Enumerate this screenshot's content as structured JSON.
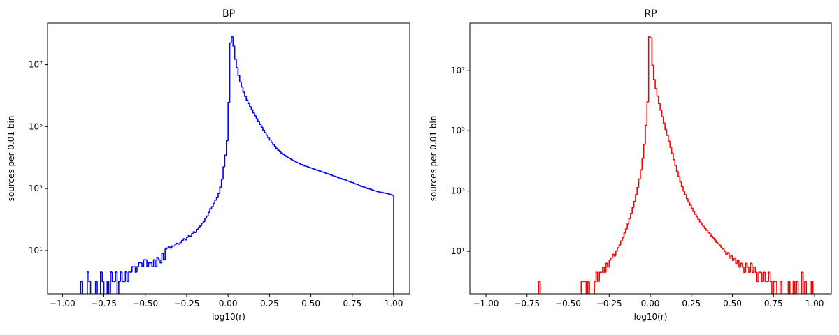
{
  "chart_data": [
    {
      "type": "histogram",
      "title": "BP",
      "xlabel": "log10(r)",
      "ylabel": "sources per 0.01 bin",
      "color": "#0000ff",
      "log_y": true,
      "xlim": [
        -1.09,
        1.097
      ],
      "ylim": [
        0.4,
        220000000
      ],
      "xticks": [
        {
          "value": -1,
          "label": "−1.00"
        },
        {
          "value": -0.75,
          "label": "−0.75"
        },
        {
          "value": -0.5,
          "label": "−0.50"
        },
        {
          "value": -0.25,
          "label": "−0.25"
        },
        {
          "value": 0,
          "label": "0.00"
        },
        0.25,
        {
          "value": 0.5,
          "label": "0.50"
        },
        0.75,
        {
          "value": 1,
          "label": "1.00"
        }
      ],
      "yticks": [
        {
          "value": 10,
          "label": "10¹"
        },
        {
          "value": 1000,
          "label": "10³"
        },
        {
          "value": 100000,
          "label": "10⁵"
        },
        {
          "value": 10000000,
          "label": "10⁷"
        }
      ],
      "bins": [
        -0.89,
        -0.88,
        -0.87,
        -0.86,
        -0.85,
        -0.84,
        -0.83,
        -0.82,
        -0.81,
        -0.8,
        -0.79,
        -0.78,
        -0.77,
        -0.76,
        -0.75,
        -0.74,
        -0.73,
        -0.72,
        -0.71,
        -0.7,
        -0.69,
        -0.68,
        -0.67,
        -0.66,
        -0.65,
        -0.64,
        -0.63,
        -0.62,
        -0.61,
        -0.6,
        -0.59,
        -0.58,
        -0.57,
        -0.56,
        -0.55,
        -0.54,
        -0.53,
        -0.52,
        -0.51,
        -0.5,
        -0.49,
        -0.48,
        -0.47,
        -0.46,
        -0.45,
        -0.44,
        -0.43,
        -0.42,
        -0.41,
        -0.4,
        -0.39,
        -0.38,
        -0.37,
        -0.36,
        -0.35,
        -0.34,
        -0.33,
        -0.32,
        -0.31,
        -0.3,
        -0.29,
        -0.28,
        -0.27,
        -0.26,
        -0.25,
        -0.24,
        -0.23,
        -0.22,
        -0.21,
        -0.2,
        -0.19,
        -0.18,
        -0.17,
        -0.16,
        -0.15,
        -0.14,
        -0.13,
        -0.12,
        -0.11,
        -0.1,
        -0.09,
        -0.08,
        -0.07,
        -0.06,
        -0.05,
        -0.04,
        -0.03,
        -0.02,
        -0.01,
        0,
        0.01,
        0.02,
        0.03,
        0.04,
        0.05,
        0.06,
        0.07,
        0.08,
        0.09,
        0.1,
        0.11,
        0.12,
        0.13,
        0.14,
        0.15,
        0.16,
        0.17,
        0.18,
        0.19,
        0.2,
        0.21,
        0.22,
        0.23,
        0.24,
        0.25,
        0.26,
        0.27,
        0.28,
        0.29,
        0.3,
        0.31,
        0.32,
        0.33,
        0.34,
        0.35,
        0.36,
        0.37,
        0.38,
        0.39,
        0.4,
        0.41,
        0.42,
        0.43,
        0.44,
        0.45,
        0.46,
        0.47,
        0.48,
        0.49,
        0.5,
        0.51,
        0.52,
        0.53,
        0.54,
        0.55,
        0.56,
        0.57,
        0.58,
        0.59,
        0.6,
        0.61,
        0.62,
        0.63,
        0.64,
        0.65,
        0.66,
        0.67,
        0.68,
        0.69,
        0.7,
        0.71,
        0.72,
        0.73,
        0.74,
        0.75,
        0.76,
        0.77,
        0.78,
        0.79,
        0.8,
        0.81,
        0.82,
        0.83,
        0.84,
        0.85,
        0.86,
        0.87,
        0.88,
        0.89,
        0.9,
        0.91,
        0.92,
        0.93,
        0.94,
        0.95,
        0.96,
        0.97,
        0.98,
        0.99,
        1
      ],
      "values": [
        1,
        0,
        0,
        0,
        2,
        1,
        0,
        0,
        0,
        1,
        0,
        0,
        2,
        1,
        0,
        0,
        1,
        0,
        2,
        1,
        1,
        2,
        0,
        1,
        2,
        1,
        1,
        2,
        1,
        2,
        2,
        3,
        3,
        2,
        3,
        4,
        4,
        3,
        5,
        5,
        3,
        4,
        4,
        3,
        5,
        3,
        6,
        5,
        4,
        8,
        5,
        11,
        12,
        13,
        12,
        14,
        14,
        16,
        17,
        16,
        18,
        21,
        24,
        22,
        27,
        30,
        29,
        35,
        40,
        38,
        48,
        55,
        62,
        75,
        85,
        110,
        130,
        170,
        220,
        260,
        330,
        420,
        520,
        700,
        1100,
        2000,
        5000,
        12000,
        35000,
        600000,
        50000000,
        80000000,
        40000000,
        15000000,
        8000000,
        4500000,
        2800000,
        1900000,
        1300000,
        950000,
        720000,
        560000,
        440000,
        350000,
        280000,
        225000,
        180000,
        145000,
        118000,
        96000,
        78000,
        64000,
        53000,
        44000,
        37000,
        31000,
        26500,
        23000,
        20000,
        17500,
        15500,
        14000,
        12800,
        11700,
        10800,
        10000,
        9300,
        8700,
        8100,
        7600,
        7100,
        6700,
        6300,
        6000,
        5700,
        5400,
        5200,
        5000,
        4800,
        4600,
        4400,
        4200,
        4000,
        3850,
        3700,
        3550,
        3400,
        3250,
        3100,
        3000,
        2850,
        2750,
        2600,
        2500,
        2400,
        2300,
        2200,
        2100,
        2000,
        1950,
        1850,
        1750,
        1700,
        1600,
        1550,
        1450,
        1400,
        1350,
        1250,
        1200,
        1150,
        1100,
        1050,
        1000,
        980,
        940,
        900,
        860,
        830,
        800,
        780,
        760,
        740,
        720,
        700,
        690,
        660,
        640,
        600
      ]
    },
    {
      "type": "histogram",
      "title": "RP",
      "xlabel": "log10(r)",
      "ylabel": "sources per 0.01 bin",
      "color": "#ff0000",
      "log_y": true,
      "xlim": [
        -1.098,
        1.102
      ],
      "ylim": [
        0.39,
        370000000
      ],
      "xticks": [
        {
          "value": -1,
          "label": "−1.00"
        },
        {
          "value": -0.75,
          "label": "−0.75"
        },
        {
          "value": -0.5,
          "label": "−0.50"
        },
        {
          "value": -0.25,
          "label": "−0.25"
        },
        {
          "value": 0,
          "label": "0.00"
        },
        0.25,
        {
          "value": 0.5,
          "label": "0.50"
        },
        0.75,
        {
          "value": 1,
          "label": "1.00"
        }
      ],
      "yticks": [
        {
          "value": 10,
          "label": "10¹"
        },
        {
          "value": 1000,
          "label": "10³"
        },
        {
          "value": 100000,
          "label": "10⁵"
        },
        {
          "value": 10000000,
          "label": "10⁷"
        }
      ],
      "bins": [
        -0.68,
        -0.67,
        -0.66,
        -0.65,
        -0.64,
        -0.63,
        -0.62,
        -0.61,
        -0.6,
        -0.59,
        -0.58,
        -0.57,
        -0.56,
        -0.55,
        -0.54,
        -0.53,
        -0.52,
        -0.51,
        -0.5,
        -0.49,
        -0.48,
        -0.47,
        -0.46,
        -0.45,
        -0.44,
        -0.43,
        -0.42,
        -0.41,
        -0.4,
        -0.39,
        -0.38,
        -0.37,
        -0.36,
        -0.35,
        -0.34,
        -0.33,
        -0.32,
        -0.31,
        -0.3,
        -0.29,
        -0.28,
        -0.27,
        -0.26,
        -0.25,
        -0.24,
        -0.23,
        -0.22,
        -0.21,
        -0.2,
        -0.19,
        -0.18,
        -0.17,
        -0.16,
        -0.15,
        -0.14,
        -0.13,
        -0.12,
        -0.11,
        -0.1,
        -0.09,
        -0.08,
        -0.07,
        -0.06,
        -0.05,
        -0.04,
        -0.03,
        -0.02,
        -0.01,
        0,
        0.01,
        0.02,
        0.03,
        0.04,
        0.05,
        0.06,
        0.07,
        0.08,
        0.09,
        0.1,
        0.11,
        0.12,
        0.13,
        0.14,
        0.15,
        0.16,
        0.17,
        0.18,
        0.19,
        0.2,
        0.21,
        0.22,
        0.23,
        0.24,
        0.25,
        0.26,
        0.27,
        0.28,
        0.29,
        0.3,
        0.31,
        0.32,
        0.33,
        0.34,
        0.35,
        0.36,
        0.37,
        0.38,
        0.39,
        0.4,
        0.41,
        0.42,
        0.43,
        0.44,
        0.45,
        0.46,
        0.47,
        0.48,
        0.49,
        0.5,
        0.51,
        0.52,
        0.53,
        0.54,
        0.55,
        0.56,
        0.57,
        0.58,
        0.59,
        0.6,
        0.61,
        0.62,
        0.63,
        0.64,
        0.65,
        0.66,
        0.67,
        0.68,
        0.69,
        0.7,
        0.71,
        0.72,
        0.73,
        0.74,
        0.75,
        0.76,
        0.77,
        0.78,
        0.79,
        0.8,
        0.81,
        0.82,
        0.83,
        0.84,
        0.85,
        0.86,
        0.87,
        0.88,
        0.89,
        0.9,
        0.91,
        0.92,
        0.93,
        0.94,
        0.95,
        0.96,
        0.97,
        0.98,
        0.99,
        1
      ],
      "values": [
        1,
        0,
        0,
        0,
        0,
        0,
        0,
        0,
        0,
        0,
        0,
        0,
        0,
        0,
        0,
        0,
        0,
        0,
        0,
        0,
        0,
        0,
        0,
        0,
        0,
        0,
        1,
        1,
        1,
        0,
        1,
        0,
        0,
        0,
        1,
        2,
        1,
        2,
        2,
        3,
        2,
        4,
        3,
        5,
        6,
        8,
        7,
        10,
        13,
        16,
        22,
        28,
        40,
        55,
        80,
        120,
        180,
        280,
        450,
        750,
        1300,
        2500,
        5000,
        12000,
        35000,
        150000,
        900000,
        130000000,
        120000000,
        15000000,
        5000000,
        2500000,
        1400000,
        800000,
        480000,
        290000,
        180000,
        110000,
        70000,
        45000,
        28000,
        18000,
        11000,
        7000,
        4500,
        3000,
        2000,
        1400,
        1000,
        750,
        560,
        430,
        340,
        270,
        210,
        170,
        140,
        115,
        95,
        80,
        68,
        58,
        50,
        42,
        38,
        32,
        28,
        24,
        20,
        18,
        16,
        13,
        12,
        10,
        8,
        9,
        6,
        7,
        5,
        6,
        4,
        5,
        3,
        4,
        3,
        2,
        4,
        3,
        2,
        4,
        2,
        3,
        2,
        1,
        2,
        2,
        1,
        2,
        1,
        1,
        2,
        1,
        0,
        1,
        1,
        0,
        0,
        1,
        0,
        0,
        0,
        0,
        1,
        0,
        0,
        1,
        0,
        1,
        0,
        0,
        2,
        0,
        1,
        0,
        0,
        0,
        1,
        0
      ]
    }
  ]
}
